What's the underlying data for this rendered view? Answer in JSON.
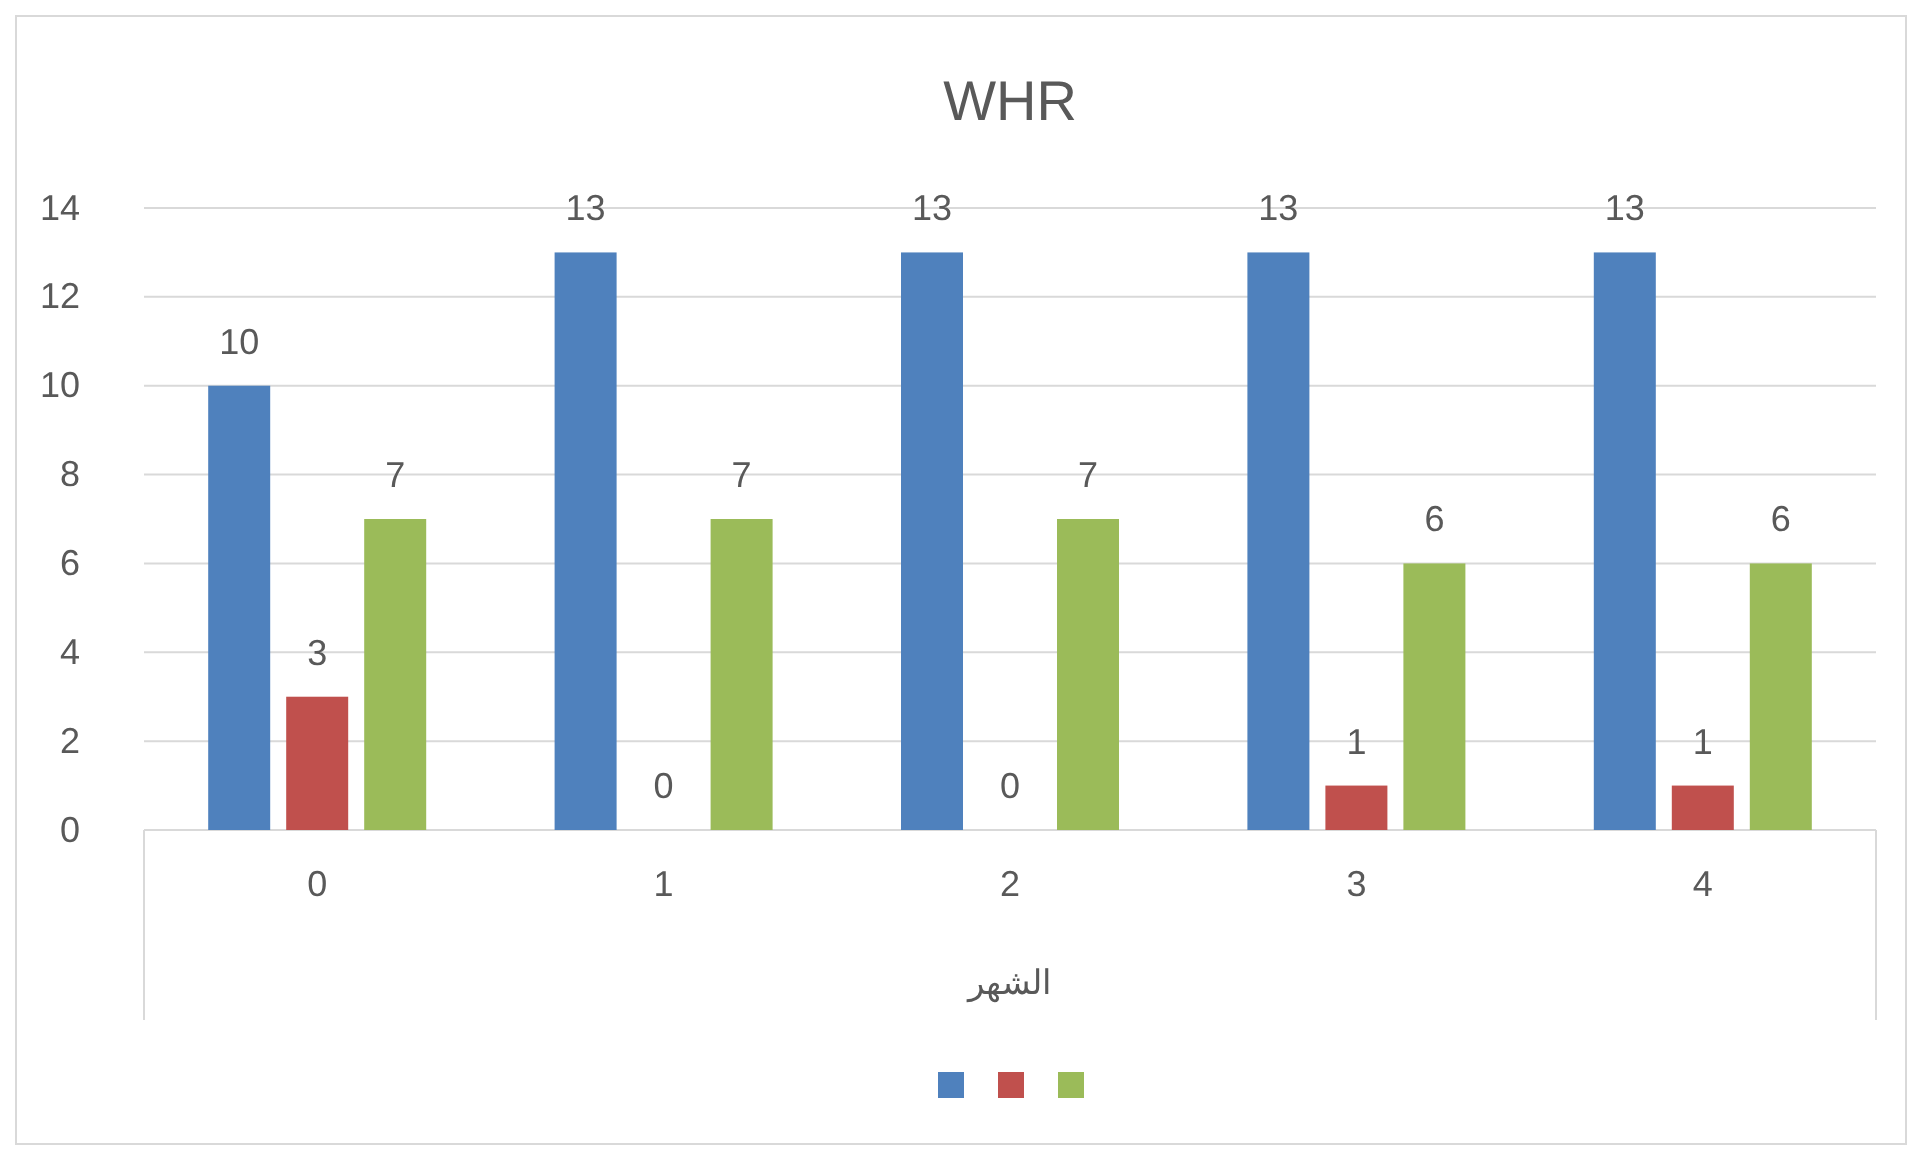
{
  "chart_data": {
    "type": "bar",
    "title": "WHR",
    "xlabel": "الشهر",
    "categories": [
      "0",
      "1",
      "2",
      "3",
      "4"
    ],
    "series": [
      {
        "color": "#4f81bd",
        "values": [
          10,
          13,
          13,
          13,
          13
        ]
      },
      {
        "color": "#c0504d",
        "values": [
          3,
          0,
          0,
          1,
          1
        ]
      },
      {
        "color": "#9bbb59",
        "values": [
          7,
          7,
          7,
          6,
          6
        ]
      }
    ],
    "ylim": [
      0,
      14
    ],
    "yticks": [
      0,
      2,
      4,
      6,
      8,
      10,
      12,
      14
    ],
    "grid": "y",
    "data_labels": true
  }
}
